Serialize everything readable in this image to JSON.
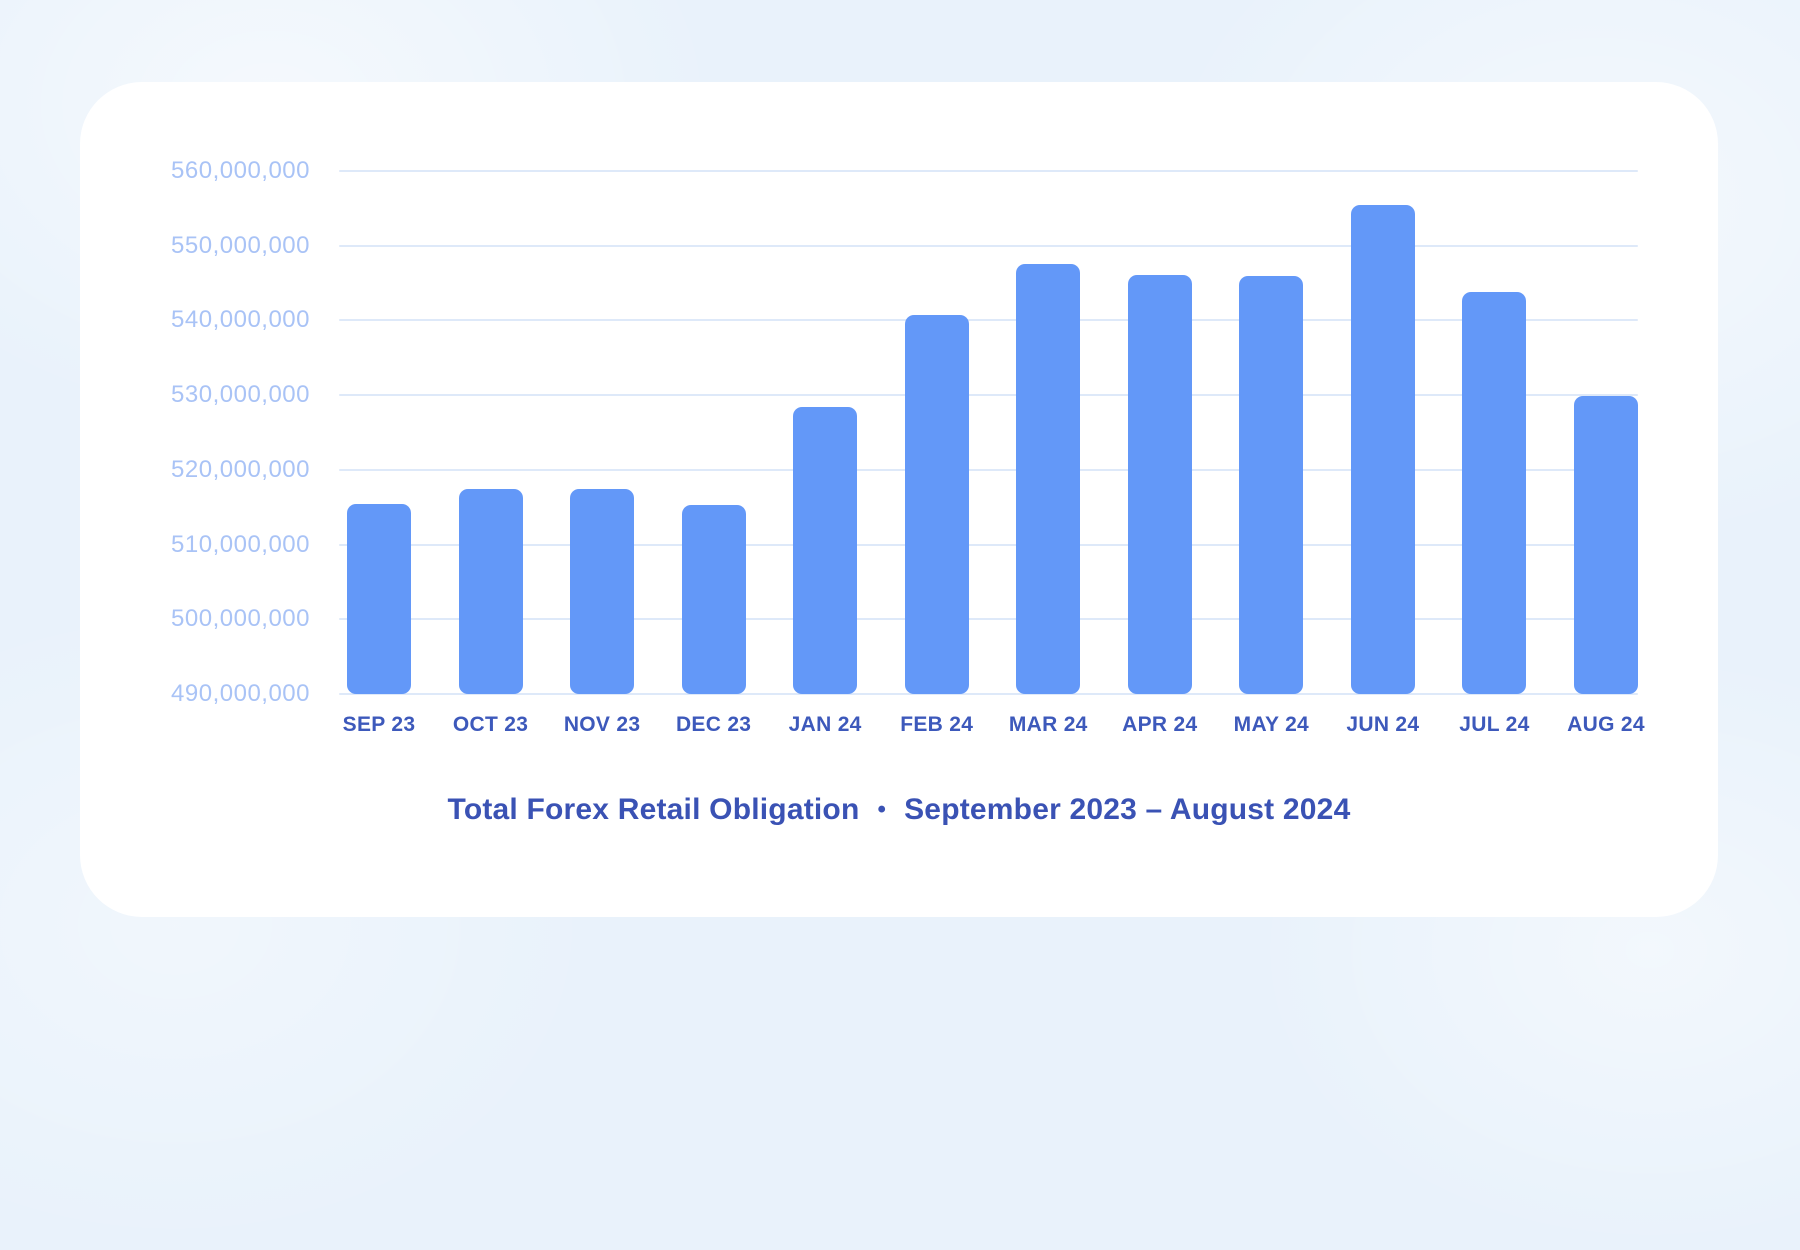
{
  "background_color": "#e9f2fb",
  "card_color": "#ffffff",
  "chart_data": {
    "type": "bar",
    "title": "Total Forex Retail Obligation",
    "title_separator": "•",
    "subtitle": "September 2023 – August 2024",
    "categories": [
      "SEP 23",
      "OCT 23",
      "NOV 23",
      "DEC 23",
      "JAN 24",
      "FEB 24",
      "MAR 24",
      "APR 24",
      "MAY 24",
      "JUN 24",
      "JUL 24",
      "AUG 24"
    ],
    "values": [
      515400000,
      517500000,
      517400000,
      515300000,
      528400000,
      540700000,
      547600000,
      546100000,
      546000000,
      555400000,
      543800000,
      529900000
    ],
    "y_ticks": [
      560000000,
      550000000,
      540000000,
      530000000,
      520000000,
      510000000,
      500000000,
      490000000
    ],
    "y_tick_labels": [
      "560,000,000",
      "550,000,000",
      "540,000,000",
      "530,000,000",
      "520,000,000",
      "510,000,000",
      "500,000,000",
      "490,000,000"
    ],
    "ylim": [
      490000000,
      560000000
    ],
    "xlabel": "",
    "ylabel": "",
    "grid": "horizontal",
    "legend": "none",
    "bar_color": "#6398f8",
    "gridline_color": "#dee9f9",
    "y_label_color": "#a9c3f6",
    "x_label_color": "#3d59bb",
    "title_color": "#3a52b4"
  }
}
